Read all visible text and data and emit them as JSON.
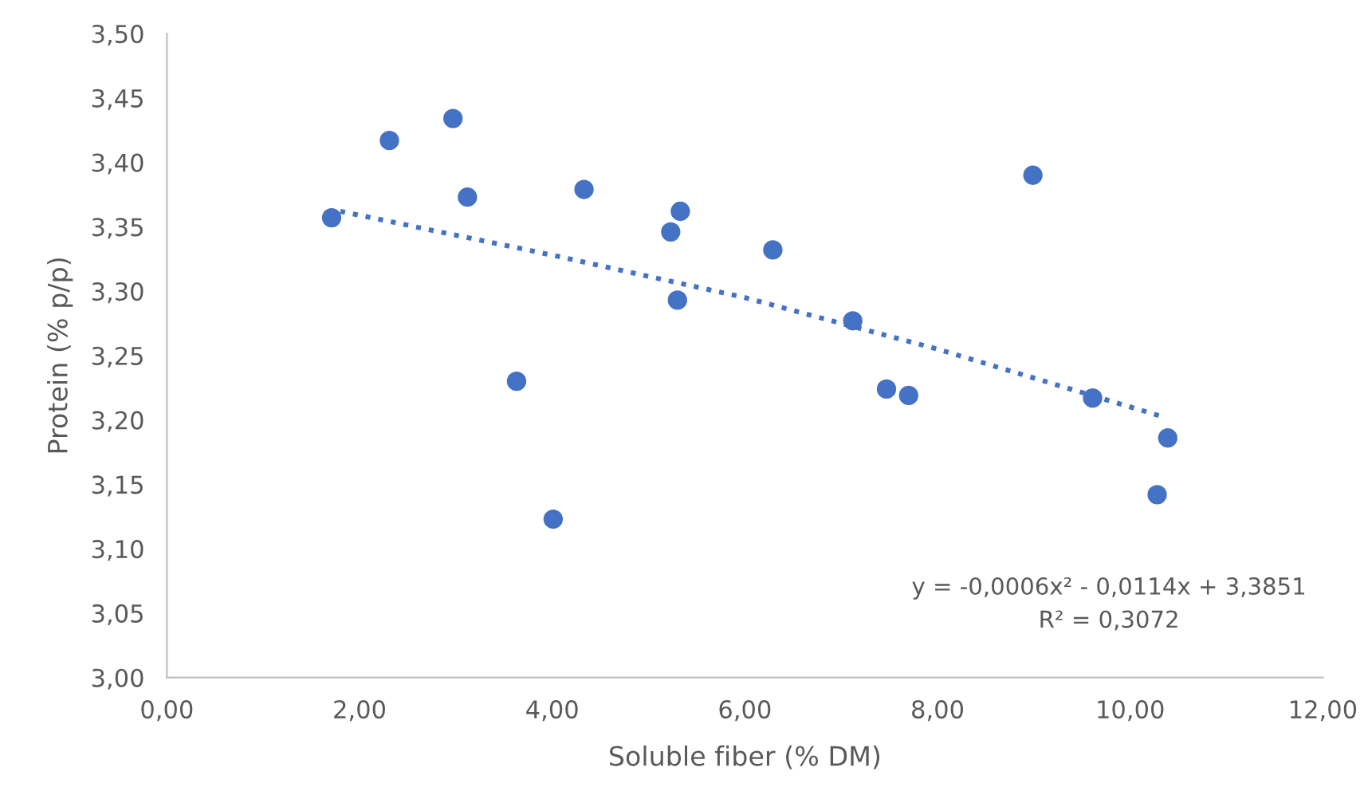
{
  "chart_data": {
    "type": "scatter",
    "xlabel": "Soluble fiber (% DM)",
    "ylabel": "Protein (% p/p)",
    "xlim": [
      0,
      12
    ],
    "ylim": [
      3.0,
      3.5
    ],
    "xticks": [
      {
        "value": 0,
        "label": "0,00"
      },
      {
        "value": 2,
        "label": "2,00"
      },
      {
        "value": 4,
        "label": "4,00"
      },
      {
        "value": 6,
        "label": "6,00"
      },
      {
        "value": 8,
        "label": "8,00"
      },
      {
        "value": 10,
        "label": "10,00"
      },
      {
        "value": 12,
        "label": "12,00"
      }
    ],
    "yticks": [
      {
        "value": 3.0,
        "label": "3,00"
      },
      {
        "value": 3.05,
        "label": "3,05"
      },
      {
        "value": 3.1,
        "label": "3,10"
      },
      {
        "value": 3.15,
        "label": "3,15"
      },
      {
        "value": 3.2,
        "label": "3,20"
      },
      {
        "value": 3.25,
        "label": "3,25"
      },
      {
        "value": 3.3,
        "label": "3,30"
      },
      {
        "value": 3.35,
        "label": "3,35"
      },
      {
        "value": 3.4,
        "label": "3,40"
      },
      {
        "value": 3.45,
        "label": "3,45"
      },
      {
        "value": 3.5,
        "label": "3,50"
      }
    ],
    "grid": false,
    "legend": false,
    "series": [
      {
        "marker": "circle",
        "color": "#4472c4",
        "x": [
          1.71,
          2.31,
          2.97,
          3.12,
          4.33,
          3.63,
          4.01,
          5.23,
          5.33,
          5.3,
          6.29,
          7.12,
          7.47,
          7.7,
          8.99,
          9.61,
          10.39,
          10.28
        ],
        "values": [
          3.357,
          3.417,
          3.434,
          3.373,
          3.379,
          3.23,
          3.123,
          3.346,
          3.362,
          3.293,
          3.332,
          3.277,
          3.224,
          3.219,
          3.39,
          3.217,
          3.186,
          3.142
        ]
      },
      {
        "type": "line",
        "marker": "none",
        "line_style": "dotted",
        "color": "#4472c4",
        "x": [
          1.8,
          4,
          6,
          8,
          10.36
        ],
        "values": [
          3.362,
          3.328,
          3.295,
          3.255,
          3.202
        ]
      }
    ],
    "annotations": [
      "y = -0,0006x² - 0,0114x + 3,3851\nR² = 0,3072"
    ]
  }
}
